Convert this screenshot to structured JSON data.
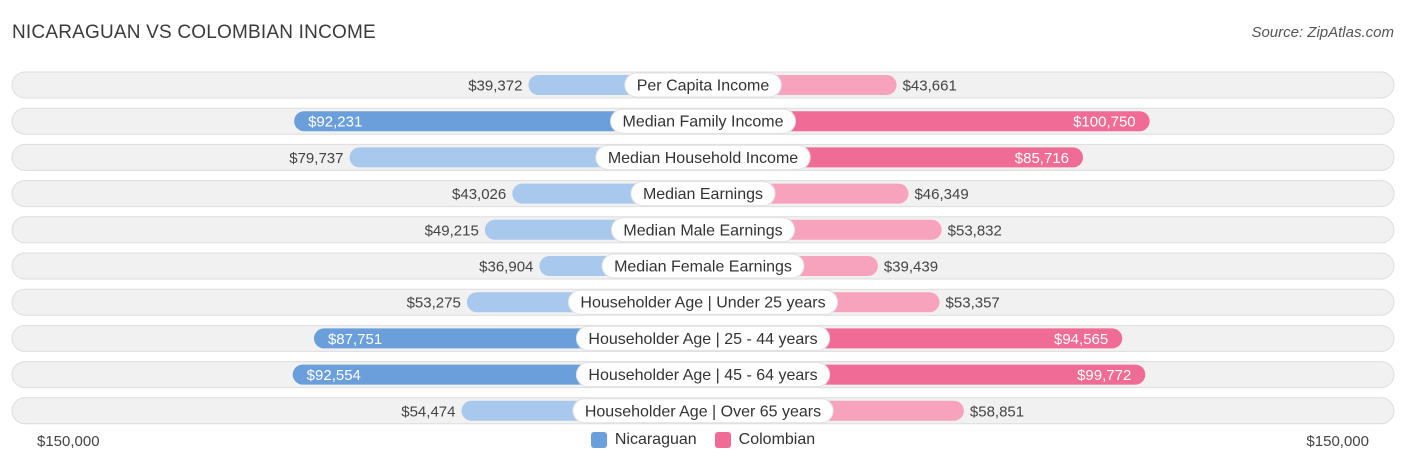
{
  "title": "NICARAGUAN VS COLOMBIAN INCOME",
  "source": "Source: ZipAtlas.com",
  "axis": {
    "left_label": "$150,000",
    "right_label": "$150,000"
  },
  "legend": [
    {
      "name": "Nicaraguan",
      "color": "#6a9fdc"
    },
    {
      "name": "Colombian",
      "color": "#f06b96"
    }
  ],
  "colors": {
    "left_strong": "#6a9fdc",
    "left_light": "#a8c8ee",
    "right_strong": "#f06b96",
    "right_light": "#f7a3be",
    "track": "#f1f1f1",
    "track_border": "#dddddd"
  },
  "chart_data": {
    "type": "bar",
    "orientation": "diverging-horizontal",
    "max": 150000,
    "categories": [
      "Per Capita Income",
      "Median Family Income",
      "Median Household Income",
      "Median Earnings",
      "Median Male Earnings",
      "Median Female Earnings",
      "Householder Age | Under 25 years",
      "Householder Age | 25 - 44 years",
      "Householder Age | 45 - 64 years",
      "Householder Age | Over 65 years"
    ],
    "series": [
      {
        "name": "Nicaraguan",
        "values": [
          39372,
          92231,
          79737,
          43026,
          49215,
          36904,
          53275,
          87751,
          92554,
          54474
        ],
        "labels": [
          "$39,372",
          "$92,231",
          "$79,737",
          "$43,026",
          "$49,215",
          "$36,904",
          "$53,275",
          "$87,751",
          "$92,554",
          "$54,474"
        ]
      },
      {
        "name": "Colombian",
        "values": [
          43661,
          100750,
          85716,
          46349,
          53832,
          39439,
          53357,
          94565,
          99772,
          58851
        ],
        "labels": [
          "$43,661",
          "$100,750",
          "$85,716",
          "$46,349",
          "$53,832",
          "$39,439",
          "$53,357",
          "$94,565",
          "$99,772",
          "$58,851"
        ]
      }
    ]
  }
}
